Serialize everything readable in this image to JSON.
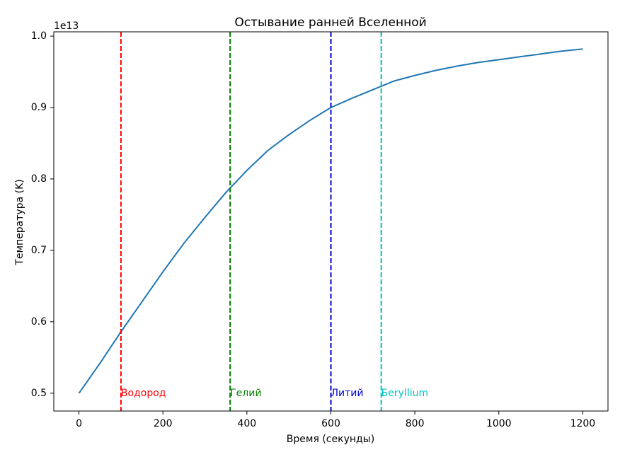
{
  "chart_data": {
    "type": "line",
    "title": "Остывание ранней Вселенной",
    "xlabel": "Время (секунды)",
    "ylabel": "Температура (K)",
    "y_offset_label": "1e13",
    "xlim": [
      -60,
      1260
    ],
    "ylim": [
      0.475,
      1.006
    ],
    "x_ticks": [
      0,
      200,
      400,
      600,
      800,
      1000,
      1200
    ],
    "x_tick_labels": [
      "0",
      "200",
      "400",
      "600",
      "800",
      "1000",
      "1200"
    ],
    "y_ticks": [
      0.5,
      0.6,
      0.7,
      0.8,
      0.9,
      1.0
    ],
    "y_tick_labels": [
      "0.5",
      "0.6",
      "0.7",
      "0.8",
      "0.9",
      "1.0"
    ],
    "grid": false,
    "series": [
      {
        "color": "#1f77b4",
        "x": [
          0,
          50,
          100,
          150,
          200,
          250,
          300,
          350,
          400,
          450,
          500,
          550,
          600,
          650,
          700,
          750,
          800,
          850,
          900,
          950,
          1000,
          1050,
          1100,
          1150,
          1200
        ],
        "y": [
          0.5,
          0.542,
          0.586,
          0.628,
          0.67,
          0.71,
          0.746,
          0.781,
          0.812,
          0.84,
          0.862,
          0.882,
          0.9,
          0.913,
          0.925,
          0.937,
          0.945,
          0.952,
          0.958,
          0.963,
          0.967,
          0.971,
          0.975,
          0.979,
          0.982
        ]
      }
    ],
    "annotations": [
      {
        "x": 100,
        "label": "Водород",
        "color": "#ff0000"
      },
      {
        "x": 360,
        "label": "Гелий",
        "color": "#008000"
      },
      {
        "x": 600,
        "label": "Литий",
        "color": "#0000cc"
      },
      {
        "x": 720,
        "label": "Бeryllium",
        "color": "#00bfbf"
      }
    ],
    "annotation_label_y": 0.5
  }
}
